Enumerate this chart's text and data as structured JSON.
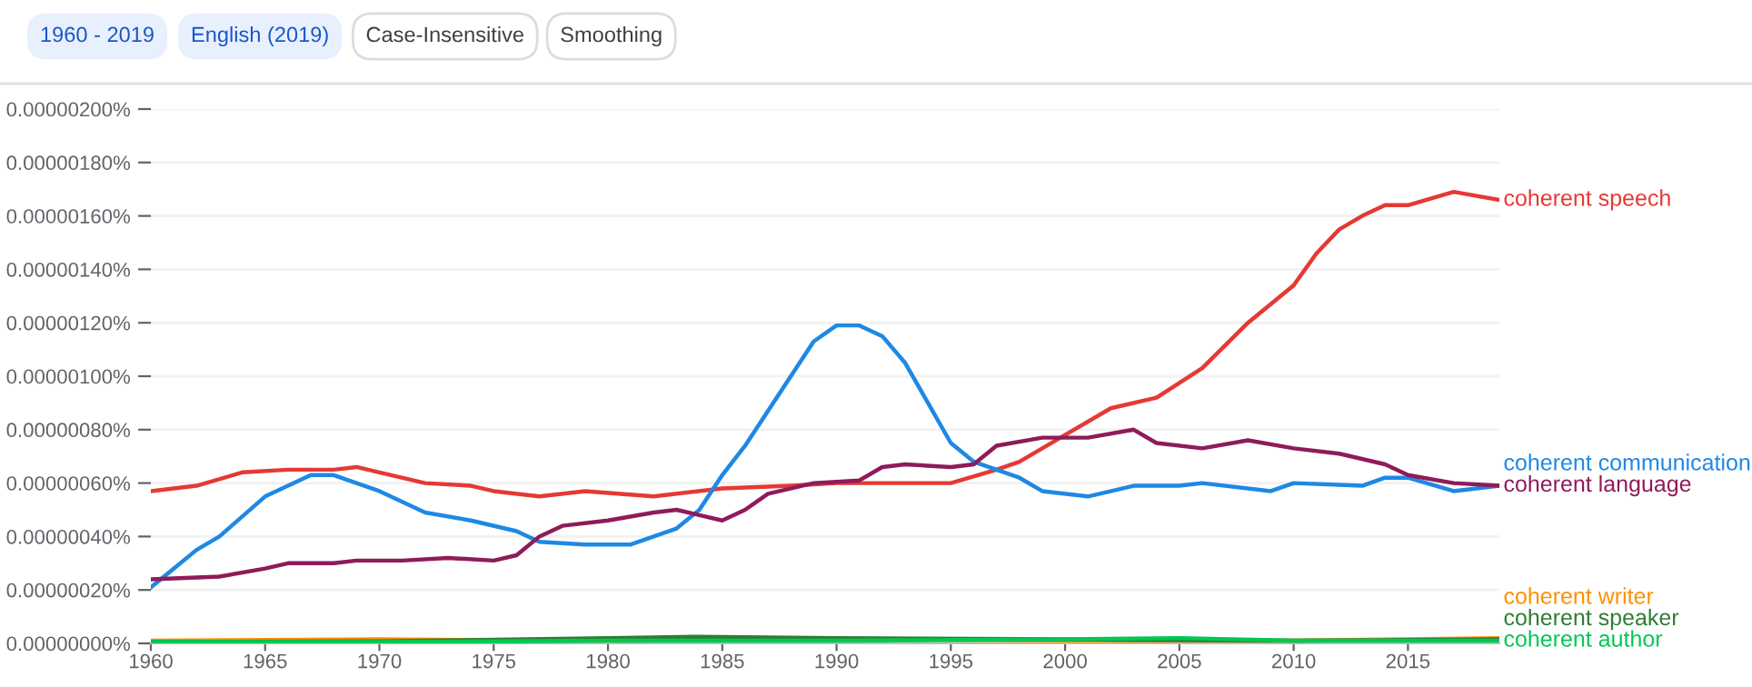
{
  "chart_data": {
    "type": "line",
    "annotations": [
      "1960 - 2019",
      "English (2019)",
      "Case-Insensitive",
      "Smoothing"
    ],
    "xlim": [
      1960,
      2019
    ],
    "xticks": [
      1960,
      1965,
      1970,
      1975,
      1980,
      1985,
      1990,
      1995,
      2000,
      2005,
      2010,
      2015
    ],
    "ylim": [
      0,
      2e-06
    ],
    "yticks": [
      {
        "value": 0,
        "label": "0.00000000%"
      },
      {
        "value": 2e-07,
        "label": "0.00000020%"
      },
      {
        "value": 4e-07,
        "label": "0.00000040%"
      },
      {
        "value": 6e-07,
        "label": "0.00000060%"
      },
      {
        "value": 8e-07,
        "label": "0.00000080%"
      },
      {
        "value": 1e-06,
        "label": "0.00000100%"
      },
      {
        "value": 1.2e-06,
        "label": "0.00000120%"
      },
      {
        "value": 1.4e-06,
        "label": "0.00000140%"
      },
      {
        "value": 1.6e-06,
        "label": "0.00000160%"
      },
      {
        "value": 1.8e-06,
        "label": "0.00000180%"
      },
      {
        "value": 2e-06,
        "label": "0.00000200%"
      }
    ],
    "grid": "y",
    "legend": "right",
    "marker": "none",
    "line_style": "solid",
    "series": [
      {
        "name": "coherent speech",
        "color": "#e53935",
        "x": [
          1960,
          1962,
          1964,
          1966,
          1968,
          1969,
          1970,
          1972,
          1974,
          1975,
          1977,
          1979,
          1982,
          1985,
          1988,
          1990,
          1992,
          1995,
          1997,
          1998,
          2000,
          2002,
          2004,
          2006,
          2008,
          2010,
          2011,
          2012,
          2013,
          2014,
          2015,
          2017,
          2019
        ],
        "values": [
          5.7e-07,
          5.9e-07,
          6.4e-07,
          6.5e-07,
          6.5e-07,
          6.6e-07,
          6.4e-07,
          6e-07,
          5.9e-07,
          5.7e-07,
          5.5e-07,
          5.7e-07,
          5.5e-07,
          5.8e-07,
          5.9e-07,
          6e-07,
          6e-07,
          6e-07,
          6.5e-07,
          6.8e-07,
          7.8e-07,
          8.8e-07,
          9.2e-07,
          1.03e-06,
          1.2e-06,
          1.34e-06,
          1.46e-06,
          1.55e-06,
          1.6e-06,
          1.64e-06,
          1.64e-06,
          1.69e-06,
          1.66e-06
        ]
      },
      {
        "name": "coherent communication",
        "color": "#1e88e5",
        "x": [
          1960,
          1961,
          1962,
          1963,
          1965,
          1967,
          1968,
          1969,
          1970,
          1972,
          1974,
          1976,
          1977,
          1979,
          1981,
          1983,
          1984,
          1985,
          1986,
          1988,
          1989,
          1990,
          1991,
          1992,
          1993,
          1994,
          1995,
          1996,
          1998,
          1999,
          2001,
          2003,
          2005,
          2006,
          2009,
          2010,
          2013,
          2014,
          2015,
          2017,
          2019
        ],
        "values": [
          2.1e-07,
          2.8e-07,
          3.5e-07,
          4e-07,
          5.5e-07,
          6.3e-07,
          6.3e-07,
          6e-07,
          5.7e-07,
          4.9e-07,
          4.6e-07,
          4.2e-07,
          3.8e-07,
          3.7e-07,
          3.7e-07,
          4.3e-07,
          5e-07,
          6.3e-07,
          7.4e-07,
          1e-06,
          1.13e-06,
          1.19e-06,
          1.19e-06,
          1.15e-06,
          1.05e-06,
          9e-07,
          7.5e-07,
          6.8e-07,
          6.2e-07,
          5.7e-07,
          5.5e-07,
          5.9e-07,
          5.9e-07,
          6e-07,
          5.7e-07,
          6e-07,
          5.9e-07,
          6.2e-07,
          6.2e-07,
          5.7e-07,
          5.9e-07
        ]
      },
      {
        "name": "coherent language",
        "color": "#8e1b5a",
        "x": [
          1960,
          1963,
          1965,
          1966,
          1968,
          1969,
          1971,
          1973,
          1975,
          1976,
          1977,
          1978,
          1980,
          1982,
          1983,
          1984,
          1985,
          1986,
          1987,
          1989,
          1991,
          1992,
          1993,
          1995,
          1996,
          1997,
          1999,
          2001,
          2003,
          2004,
          2006,
          2008,
          2010,
          2012,
          2014,
          2015,
          2017,
          2019
        ],
        "values": [
          2.4e-07,
          2.5e-07,
          2.8e-07,
          3e-07,
          3e-07,
          3.1e-07,
          3.1e-07,
          3.2e-07,
          3.1e-07,
          3.3e-07,
          4e-07,
          4.4e-07,
          4.6e-07,
          4.9e-07,
          5e-07,
          4.8e-07,
          4.6e-07,
          5e-07,
          5.6e-07,
          6e-07,
          6.1e-07,
          6.6e-07,
          6.7e-07,
          6.6e-07,
          6.7e-07,
          7.4e-07,
          7.7e-07,
          7.7e-07,
          8e-07,
          7.5e-07,
          7.3e-07,
          7.6e-07,
          7.3e-07,
          7.1e-07,
          6.7e-07,
          6.3e-07,
          6e-07,
          5.9e-07
        ]
      },
      {
        "name": "coherent writer",
        "color": "#ff8f00",
        "x": [
          1960,
          1970,
          1980,
          1990,
          2000,
          2010,
          2019
        ],
        "values": [
          1e-08,
          1.5e-08,
          1e-08,
          1.5e-08,
          1e-08,
          1e-08,
          2e-08
        ]
      },
      {
        "name": "coherent speaker",
        "color": "#2e7d32",
        "x": [
          1960,
          1970,
          1980,
          1984,
          1990,
          2000,
          2010,
          2019
        ],
        "values": [
          5e-09,
          8e-09,
          2e-08,
          2.5e-08,
          2e-08,
          1.5e-08,
          1e-08,
          1.5e-08
        ]
      },
      {
        "name": "coherent author",
        "color": "#00c853",
        "x": [
          1960,
          1970,
          1980,
          1990,
          2000,
          2005,
          2010,
          2019
        ],
        "values": [
          5e-09,
          5e-09,
          1e-08,
          1e-08,
          1.5e-08,
          2e-08,
          1e-08,
          1e-08
        ]
      }
    ]
  }
}
